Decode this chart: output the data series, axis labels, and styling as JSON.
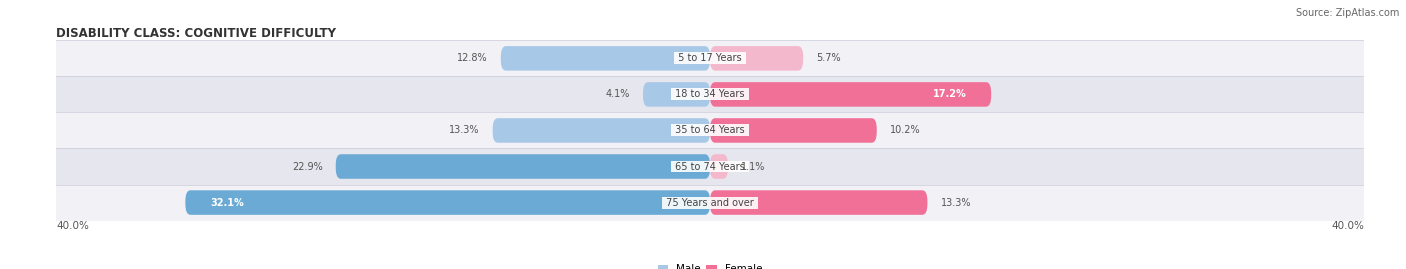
{
  "title": "DISABILITY CLASS: COGNITIVE DIFFICULTY",
  "source": "Source: ZipAtlas.com",
  "categories": [
    "5 to 17 Years",
    "18 to 34 Years",
    "35 to 64 Years",
    "65 to 74 Years",
    "75 Years and over"
  ],
  "male_values": [
    12.8,
    4.1,
    13.3,
    22.9,
    32.1
  ],
  "female_values": [
    5.7,
    17.2,
    10.2,
    1.1,
    13.3
  ],
  "male_color_light": "#a8c8e8",
  "male_color_dark": "#6aaad4",
  "female_color_light": "#f4b8cc",
  "female_color_dark": "#f07098",
  "row_bg_even": "#f2f2f6",
  "row_bg_odd": "#e6e6ee",
  "max_val": 40.0,
  "title_fontsize": 8.5,
  "source_fontsize": 7,
  "label_fontsize": 7.5,
  "category_fontsize": 7,
  "value_fontsize": 7,
  "legend_fontsize": 7.5
}
